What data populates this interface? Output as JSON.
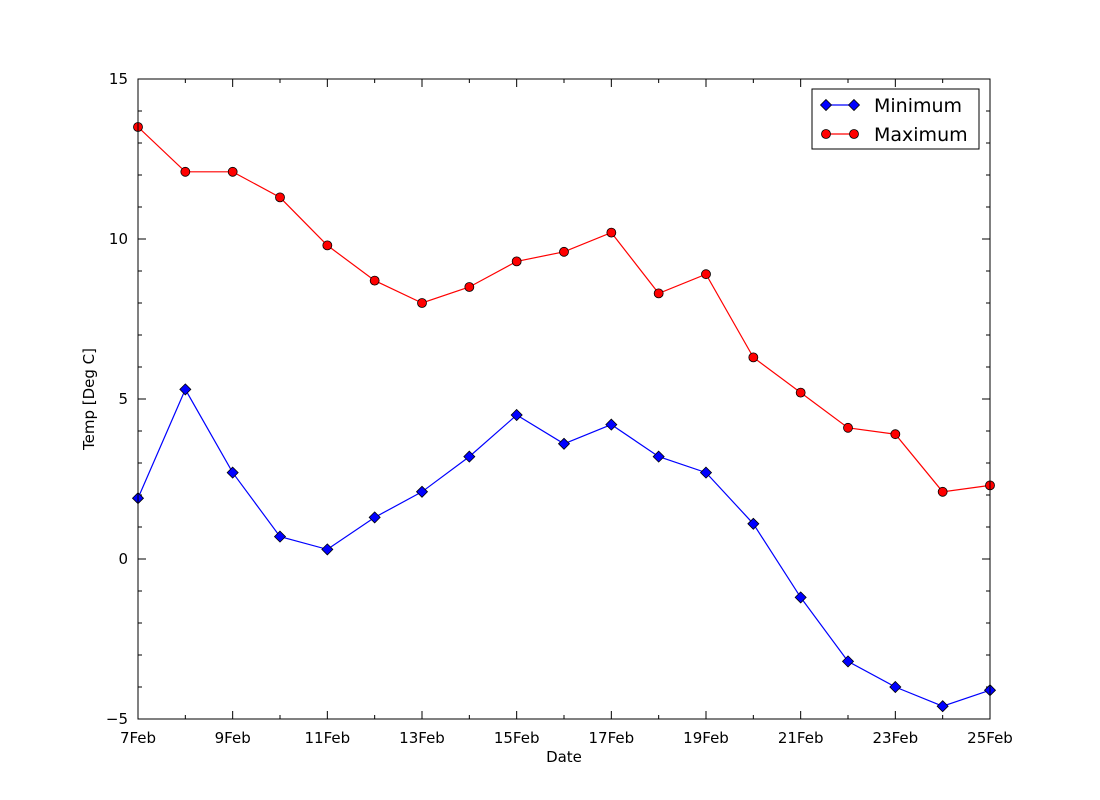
{
  "chart_data": {
    "type": "line",
    "title": "",
    "xlabel": "Date",
    "ylabel": "Temp [Deg C]",
    "x": [
      "7Feb",
      "8Feb",
      "9Feb",
      "10Feb",
      "11Feb",
      "12Feb",
      "13Feb",
      "14Feb",
      "15Feb",
      "16Feb",
      "17Feb",
      "18Feb",
      "19Feb",
      "20Feb",
      "21Feb",
      "22Feb",
      "23Feb",
      "24Feb",
      "25Feb"
    ],
    "x_tick_labels": [
      "7Feb",
      "9Feb",
      "11Feb",
      "13Feb",
      "15Feb",
      "17Feb",
      "19Feb",
      "21Feb",
      "23Feb",
      "25Feb"
    ],
    "ylim": [
      -5,
      15
    ],
    "y_ticks": [
      -5,
      0,
      5,
      10,
      15
    ],
    "grid": false,
    "legend_position": "top-right",
    "series": [
      {
        "name": "Minimum",
        "color": "#0000ff",
        "marker": "diamond",
        "values": [
          1.9,
          5.3,
          2.7,
          0.7,
          0.3,
          1.3,
          2.1,
          3.2,
          4.5,
          3.6,
          4.2,
          3.2,
          2.7,
          1.1,
          -1.2,
          -3.2,
          -4.0,
          -4.6,
          -4.1
        ]
      },
      {
        "name": "Maximum",
        "color": "#ff0000",
        "marker": "circle",
        "values": [
          13.5,
          12.1,
          12.1,
          11.3,
          9.8,
          8.7,
          8.0,
          8.5,
          9.3,
          9.6,
          10.2,
          8.3,
          8.9,
          6.3,
          5.2,
          4.1,
          3.9,
          2.1,
          2.3
        ]
      }
    ]
  }
}
